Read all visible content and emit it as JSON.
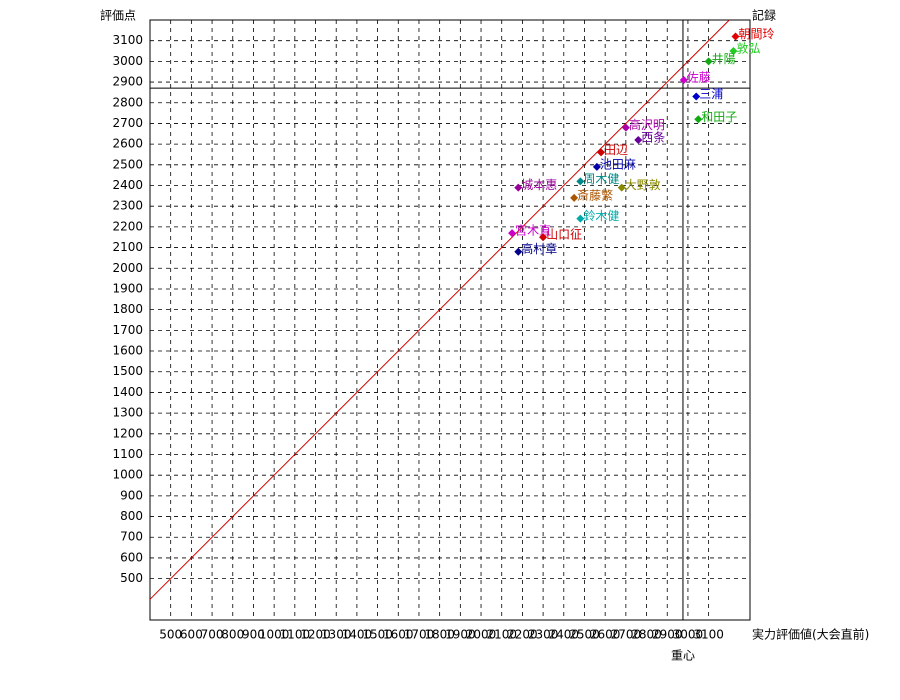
{
  "chart_data": {
    "type": "scatter",
    "y_label": "評価点",
    "x_label": "実力評価値(大会直前)",
    "top_right_label": "記録",
    "xlim": [
      400,
      3300
    ],
    "ylim": [
      300,
      3200
    ],
    "xticks": [
      500,
      600,
      700,
      800,
      900,
      1000,
      1100,
      1200,
      1300,
      1400,
      1500,
      1600,
      1700,
      1800,
      1900,
      2000,
      2100,
      2200,
      2300,
      2400,
      2500,
      2600,
      2700,
      2800,
      2900,
      3000,
      3100
    ],
    "yticks": [
      500,
      600,
      700,
      800,
      900,
      1000,
      1100,
      1200,
      1300,
      1400,
      1500,
      1600,
      1700,
      1800,
      1900,
      2000,
      2100,
      2200,
      2300,
      2400,
      2500,
      2600,
      2700,
      2800,
      2900,
      3000,
      3100
    ],
    "grid": true,
    "diagonal": true,
    "diagonal_color": "#cc0000",
    "centroid": {
      "label": "重心",
      "x": 2976,
      "y": 2871
    },
    "points": [
      {
        "label": "朝間玲",
        "x": 3230,
        "y": 3120,
        "color": "#e00000"
      },
      {
        "label": "敦弘",
        "x": 3220,
        "y": 3050,
        "color": "#22cc22"
      },
      {
        "label": "井陽",
        "x": 3100,
        "y": 3000,
        "color": "#11aa11"
      },
      {
        "label": "佐藤",
        "x": 2980,
        "y": 2910,
        "color": "#cc00cc"
      },
      {
        "label": "三浦",
        "x": 3040,
        "y": 2830,
        "color": "#0000cc"
      },
      {
        "label": "和田子",
        "x": 3050,
        "y": 2720,
        "color": "#11aa11"
      },
      {
        "label": "高沢明",
        "x": 2700,
        "y": 2680,
        "color": "#aa00aa"
      },
      {
        "label": "西条",
        "x": 2760,
        "y": 2620,
        "color": "#660099"
      },
      {
        "label": "田辺",
        "x": 2580,
        "y": 2560,
        "color": "#cc0000"
      },
      {
        "label": "池田麻",
        "x": 2560,
        "y": 2490,
        "color": "#0000aa"
      },
      {
        "label": "周木健",
        "x": 2480,
        "y": 2420,
        "color": "#008888"
      },
      {
        "label": "大野敦",
        "x": 2680,
        "y": 2390,
        "color": "#888800"
      },
      {
        "label": "城本惠",
        "x": 2180,
        "y": 2390,
        "color": "#990099"
      },
      {
        "label": "斎藤繁",
        "x": 2450,
        "y": 2340,
        "color": "#aa5500"
      },
      {
        "label": "鈴木健",
        "x": 2480,
        "y": 2240,
        "color": "#00aaaa"
      },
      {
        "label": "宮木直",
        "x": 2150,
        "y": 2170,
        "color": "#cc00cc"
      },
      {
        "label": "山口征",
        "x": 2300,
        "y": 2150,
        "color": "#cc0000"
      },
      {
        "label": "高村章",
        "x": 2180,
        "y": 2080,
        "color": "#000088"
      }
    ]
  }
}
